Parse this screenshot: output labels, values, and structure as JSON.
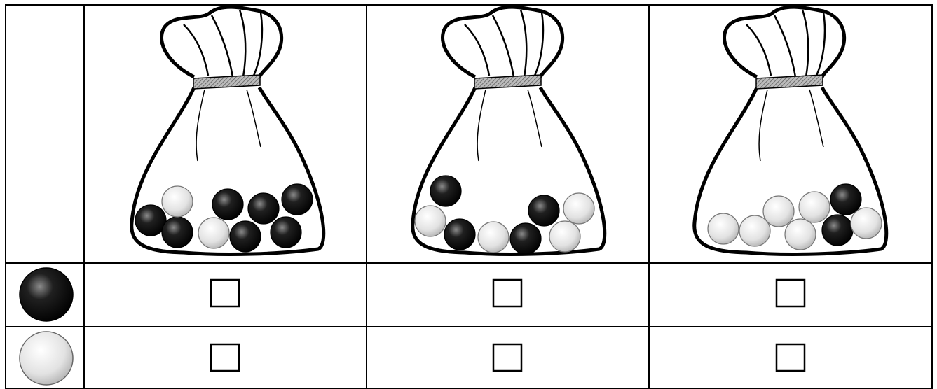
{
  "bags": [
    {
      "black": 7,
      "white": 2
    },
    {
      "black": 4,
      "white": 4
    },
    {
      "black": 2,
      "white": 6
    }
  ]
}
